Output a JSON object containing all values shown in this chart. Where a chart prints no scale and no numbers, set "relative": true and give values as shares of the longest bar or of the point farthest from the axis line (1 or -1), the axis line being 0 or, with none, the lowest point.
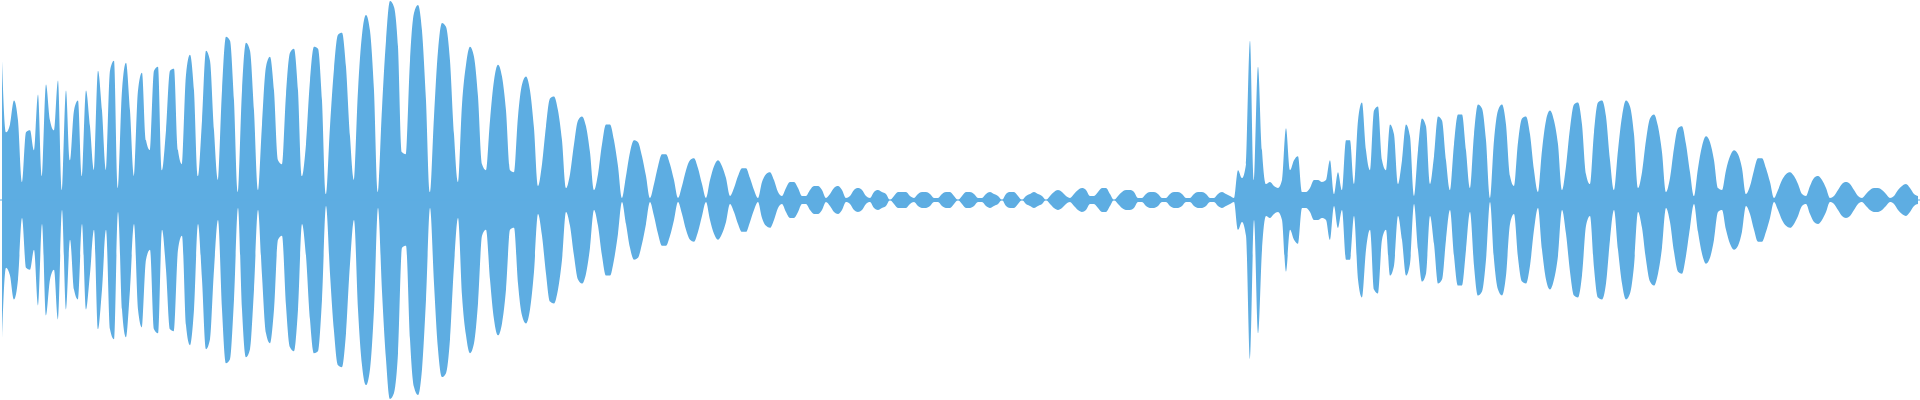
{
  "chart_data": {
    "type": "area",
    "relative": true,
    "ref_lines": [
      {
        "axis": "y",
        "value": 0,
        "color": "#5dade2"
      }
    ],
    "categories": [
      null,
      null,
      null,
      null,
      null,
      null,
      null,
      null,
      null,
      null,
      null,
      null,
      null,
      null,
      null,
      null,
      null,
      null,
      null,
      null,
      null,
      null,
      null,
      null,
      null,
      null,
      null,
      null,
      null,
      null,
      null,
      null,
      null,
      null,
      null,
      null,
      null,
      null,
      null,
      null,
      null,
      null,
      null,
      null,
      null,
      null,
      null,
      null,
      null,
      null,
      null,
      null,
      null,
      null,
      null,
      null,
      null,
      null,
      null,
      null,
      null,
      null,
      null,
      null,
      null,
      null,
      null,
      null,
      null,
      null,
      null,
      null,
      null,
      null,
      null,
      null,
      null,
      null,
      null,
      null,
      null,
      null,
      null,
      null,
      null,
      null,
      null,
      null,
      null,
      null,
      null,
      null,
      null,
      null,
      null,
      null,
      null,
      null,
      null,
      null,
      null,
      null,
      null,
      null,
      null,
      null,
      null,
      null,
      null,
      null,
      null,
      null,
      null,
      null,
      null,
      null,
      null,
      null,
      null,
      null,
      null,
      null,
      null,
      null,
      null,
      null,
      null,
      null,
      null,
      null,
      null,
      null,
      null,
      null,
      null,
      null,
      null,
      null,
      null,
      null,
      null,
      null,
      null,
      null,
      null,
      null,
      null,
      null,
      null,
      null,
      null,
      null,
      null,
      null,
      null,
      null,
      null,
      null,
      null,
      null,
      null,
      null,
      null,
      null,
      null,
      null,
      null,
      null,
      null,
      null,
      null,
      null,
      null,
      null,
      null,
      null,
      null,
      null,
      null,
      null,
      null,
      null,
      null,
      null,
      null,
      null,
      null,
      null,
      null,
      null,
      null,
      null,
      null,
      null,
      null,
      null,
      null,
      null,
      null,
      null,
      null,
      null,
      null,
      null,
      null,
      null,
      null,
      null,
      null,
      null,
      null,
      null,
      null,
      null,
      null,
      null,
      null,
      null,
      null,
      null,
      null,
      null,
      null,
      null,
      null,
      null,
      null,
      null,
      null,
      null,
      null,
      null,
      null,
      null,
      null,
      null,
      null,
      null,
      null,
      null,
      null,
      null,
      null,
      null,
      null,
      null,
      null,
      null,
      null,
      null,
      null,
      null,
      null,
      null,
      null,
      null,
      null,
      null,
      null,
      null,
      null,
      null,
      null,
      null,
      null,
      null,
      null,
      null,
      null,
      null,
      null,
      null,
      null,
      null,
      null,
      null,
      null,
      null,
      null,
      null,
      null,
      null,
      null,
      null,
      null,
      null,
      null,
      null,
      null,
      null,
      null,
      null,
      null,
      null,
      null,
      null,
      null,
      null,
      null,
      null,
      null,
      null,
      null,
      null,
      null,
      null,
      null,
      null,
      null,
      null,
      null,
      null,
      null,
      null,
      null,
      null,
      null,
      null,
      null,
      null,
      null,
      null,
      null,
      null,
      null,
      null,
      null,
      null,
      null,
      null,
      null,
      null,
      null,
      null,
      null,
      null,
      null,
      null,
      null,
      null,
      null,
      null,
      null,
      null,
      null,
      null,
      null,
      null,
      null,
      null,
      null,
      null,
      null,
      null,
      null,
      null,
      null,
      null,
      null,
      null,
      null,
      null,
      null,
      null,
      null,
      null,
      null,
      null,
      null,
      null,
      null,
      null,
      null,
      null,
      null,
      null,
      null,
      null,
      null,
      null,
      null,
      null,
      null,
      null,
      null,
      null,
      null,
      null,
      null,
      null,
      null,
      null,
      null,
      null,
      null,
      null,
      null,
      null,
      null,
      null,
      null,
      null,
      null,
      null,
      null,
      null,
      null,
      null,
      null,
      null,
      null,
      null,
      null,
      null,
      null,
      null,
      null,
      null,
      null,
      null,
      null,
      null,
      null,
      null,
      null,
      null,
      null,
      null,
      null,
      null,
      null,
      null,
      null,
      null,
      null,
      null,
      null,
      null,
      null,
      null,
      null,
      null,
      null,
      null,
      null,
      null,
      null,
      null,
      null,
      null,
      null,
      null,
      null,
      null,
      null,
      null,
      null,
      null,
      null,
      null,
      null,
      null,
      null,
      null,
      null,
      null,
      null,
      null,
      null,
      null,
      null,
      null,
      null,
      null,
      null,
      null,
      null,
      null,
      null,
      null
    ],
    "series": [
      {
        "color": "#5dade2",
        "values": [
          0.7,
          0.34,
          0.38,
          0.5,
          0.4,
          0.09,
          0.34,
          0.35,
          0.25,
          0.53,
          0.12,
          0.58,
          0.4,
          0.35,
          0.6,
          0.05,
          0.55,
          0.2,
          0.45,
          0.5,
          0.12,
          0.55,
          0.37,
          0.15,
          0.65,
          0.45,
          0.15,
          0.65,
          0.7,
          0.06,
          0.55,
          0.69,
          0.45,
          0.12,
          0.55,
          0.64,
          0.3,
          0.25,
          0.65,
          0.67,
          0.15,
          0.35,
          0.65,
          0.66,
          0.25,
          0.18,
          0.63,
          0.73,
          0.55,
          0.12,
          0.4,
          0.75,
          0.7,
          0.35,
          0.1,
          0.55,
          0.82,
          0.8,
          0.5,
          0.04,
          0.55,
          0.79,
          0.75,
          0.45,
          0.05,
          0.38,
          0.67,
          0.72,
          0.55,
          0.2,
          0.18,
          0.53,
          0.74,
          0.76,
          0.55,
          0.12,
          0.28,
          0.6,
          0.77,
          0.76,
          0.5,
          0.03,
          0.37,
          0.66,
          0.83,
          0.84,
          0.67,
          0.32,
          0.1,
          0.55,
          0.83,
          0.93,
          0.85,
          0.55,
          0.04,
          0.46,
          0.8,
          1,
          0.97,
          0.77,
          0.24,
          0.23,
          0.7,
          0.94,
          0.98,
          0.85,
          0.5,
          0.04,
          0.42,
          0.75,
          0.89,
          0.87,
          0.7,
          0.33,
          0.09,
          0.48,
          0.68,
          0.77,
          0.72,
          0.52,
          0.18,
          0.15,
          0.4,
          0.6,
          0.68,
          0.62,
          0.45,
          0.15,
          0.14,
          0.42,
          0.58,
          0.62,
          0.55,
          0.36,
          0.07,
          0.18,
          0.37,
          0.51,
          0.52,
          0.45,
          0.3,
          0.06,
          0.13,
          0.28,
          0.4,
          0.42,
          0.37,
          0.24,
          0.05,
          0.13,
          0.28,
          0.38,
          0.38,
          0.3,
          0.17,
          0.01,
          0.12,
          0.24,
          0.3,
          0.29,
          0.22,
          0.12,
          0.01,
          0.08,
          0.17,
          0.23,
          0.23,
          0.18,
          0.1,
          0.01,
          0.07,
          0.15,
          0.2,
          0.21,
          0.16,
          0.08,
          0.01,
          0.1,
          0.17,
          0.2,
          0.17,
          0.11,
          0.02,
          0.06,
          0.12,
          0.16,
          0.16,
          0.11,
          0.05,
          0.01,
          0.09,
          0.13,
          0.14,
          0.1,
          0.04,
          0.02,
          0.06,
          0.09,
          0.09,
          0.06,
          0.02,
          0.02,
          0.05,
          0.07,
          0.07,
          0.05,
          0.01,
          0.03,
          0.06,
          0.07,
          0.05,
          0.01,
          0.02,
          0.05,
          0.06,
          0.05,
          0.02,
          0.01,
          0.04,
          0.05,
          0.04,
          0.03,
          0,
          0.02,
          0.04,
          0.04,
          0.04,
          0.02,
          0.01,
          0.03,
          0.04,
          0.04,
          0.03,
          0.01,
          0.01,
          0.03,
          0.04,
          0.04,
          0.02,
          0,
          0.02,
          0.04,
          0.04,
          0.03,
          0.01,
          0.01,
          0.03,
          0.04,
          0.03,
          0.02,
          0,
          0.03,
          0.04,
          0.04,
          0.02,
          0,
          0.02,
          0.03,
          0.04,
          0.03,
          0.02,
          0,
          0.02,
          0.04,
          0.05,
          0.04,
          0.02,
          0.01,
          0.03,
          0.05,
          0.06,
          0.05,
          0.02,
          0.02,
          0.04,
          0.06,
          0.06,
          0.03,
          0,
          0.02,
          0.04,
          0.05,
          0.05,
          0.04,
          0.01,
          0.01,
          0.03,
          0.04,
          0.04,
          0.03,
          0.01,
          0.01,
          0.03,
          0.04,
          0.04,
          0.03,
          0.01,
          0.01,
          0.03,
          0.04,
          0.04,
          0.03,
          0.01,
          0.01,
          0.03,
          0.04,
          0.03,
          0.02,
          0.01,
          0.15,
          0.11,
          0.18,
          0.8,
          0.1,
          0.67,
          0.25,
          0.08,
          0.09,
          0.07,
          0.06,
          0.1,
          0.36,
          0.15,
          0.2,
          0.22,
          0.04,
          0.04,
          0.06,
          0.1,
          0.1,
          0.09,
          0.1,
          0.2,
          0.03,
          0.14,
          0.05,
          0.3,
          0.3,
          0.08,
          0.4,
          0.49,
          0.25,
          0.15,
          0.45,
          0.47,
          0.2,
          0.15,
          0.38,
          0.33,
          0.08,
          0.2,
          0.38,
          0.32,
          0.02,
          0.25,
          0.41,
          0.37,
          0.08,
          0.22,
          0.42,
          0.4,
          0.2,
          0.05,
          0.28,
          0.43,
          0.43,
          0.25,
          0.06,
          0.33,
          0.48,
          0.46,
          0.3,
          0.01,
          0.3,
          0.45,
          0.48,
          0.38,
          0.12,
          0.07,
          0.29,
          0.41,
          0.42,
          0.33,
          0.15,
          0.04,
          0.25,
          0.4,
          0.45,
          0.4,
          0.28,
          0.05,
          0.17,
          0.36,
          0.48,
          0.49,
          0.38,
          0.13,
          0.08,
          0.34,
          0.49,
          0.5,
          0.42,
          0.2,
          0.05,
          0.25,
          0.42,
          0.5,
          0.47,
          0.33,
          0.06,
          0.14,
          0.3,
          0.41,
          0.43,
          0.37,
          0.24,
          0.04,
          0.11,
          0.26,
          0.36,
          0.37,
          0.28,
          0.14,
          0.02,
          0.16,
          0.27,
          0.32,
          0.29,
          0.2,
          0.06,
          0.05,
          0.15,
          0.22,
          0.25,
          0.23,
          0.16,
          0.03,
          0.07,
          0.15,
          0.21,
          0.21,
          0.16,
          0.09,
          0.01,
          0.05,
          0.1,
          0.13,
          0.14,
          0.12,
          0.08,
          0.03,
          0.02,
          0.07,
          0.11,
          0.12,
          0.1,
          0.06,
          0.01,
          0.02,
          0.05,
          0.08,
          0.09,
          0.08,
          0.05,
          0.02,
          0.01,
          0.03,
          0.05,
          0.06,
          0.06,
          0.05,
          0.03,
          0.01,
          0.02,
          0.05,
          0.07,
          0.08,
          0.06,
          0.03,
          0.02
        ]
      },
      {
        "color": "#5eade2",
        "values": [
          -0.7,
          -0.34,
          -0.38,
          -0.5,
          -0.4,
          -0.09,
          -0.34,
          -0.35,
          -0.25,
          -0.53,
          -0.12,
          -0.58,
          -0.4,
          -0.35,
          -0.6,
          -0.05,
          -0.55,
          -0.2,
          -0.45,
          -0.5,
          -0.12,
          -0.55,
          -0.37,
          -0.15,
          -0.65,
          -0.45,
          -0.15,
          -0.65,
          -0.7,
          -0.06,
          -0.55,
          -0.69,
          -0.45,
          -0.12,
          -0.55,
          -0.64,
          -0.3,
          -0.25,
          -0.65,
          -0.67,
          -0.15,
          -0.35,
          -0.65,
          -0.66,
          -0.25,
          -0.18,
          -0.63,
          -0.73,
          -0.55,
          -0.12,
          -0.4,
          -0.75,
          -0.7,
          -0.35,
          -0.1,
          -0.55,
          -0.82,
          -0.8,
          -0.5,
          -0.04,
          -0.55,
          -0.79,
          -0.75,
          -0.45,
          -0.05,
          -0.38,
          -0.67,
          -0.72,
          -0.55,
          -0.2,
          -0.18,
          -0.53,
          -0.74,
          -0.76,
          -0.55,
          -0.12,
          -0.28,
          -0.6,
          -0.77,
          -0.76,
          -0.5,
          -0.03,
          -0.37,
          -0.66,
          -0.83,
          -0.84,
          -0.67,
          -0.32,
          -0.1,
          -0.55,
          -0.83,
          -0.93,
          -0.85,
          -0.55,
          -0.04,
          -0.46,
          -0.8,
          -1,
          -0.97,
          -0.77,
          -0.24,
          -0.23,
          -0.7,
          -0.94,
          -0.98,
          -0.85,
          -0.5,
          -0.04,
          -0.42,
          -0.75,
          -0.89,
          -0.87,
          -0.7,
          -0.33,
          -0.09,
          -0.48,
          -0.68,
          -0.77,
          -0.72,
          -0.52,
          -0.18,
          -0.15,
          -0.4,
          -0.6,
          -0.68,
          -0.62,
          -0.45,
          -0.15,
          -0.14,
          -0.42,
          -0.58,
          -0.62,
          -0.55,
          -0.36,
          -0.07,
          -0.18,
          -0.37,
          -0.51,
          -0.52,
          -0.45,
          -0.3,
          -0.06,
          -0.13,
          -0.28,
          -0.4,
          -0.42,
          -0.37,
          -0.24,
          -0.05,
          -0.13,
          -0.28,
          -0.38,
          -0.38,
          -0.3,
          -0.17,
          -0.01,
          -0.12,
          -0.24,
          -0.3,
          -0.29,
          -0.22,
          -0.12,
          -0.01,
          -0.08,
          -0.17,
          -0.23,
          -0.23,
          -0.18,
          -0.1,
          -0.01,
          -0.07,
          -0.15,
          -0.2,
          -0.21,
          -0.16,
          -0.08,
          -0.01,
          -0.1,
          -0.17,
          -0.2,
          -0.17,
          -0.11,
          -0.02,
          -0.06,
          -0.12,
          -0.16,
          -0.16,
          -0.11,
          -0.05,
          -0.01,
          -0.09,
          -0.13,
          -0.14,
          -0.1,
          -0.04,
          -0.02,
          -0.06,
          -0.09,
          -0.09,
          -0.06,
          -0.02,
          -0.02,
          -0.05,
          -0.07,
          -0.07,
          -0.05,
          -0.01,
          -0.03,
          -0.06,
          -0.07,
          -0.05,
          -0.01,
          -0.02,
          -0.05,
          -0.06,
          -0.05,
          -0.02,
          -0.01,
          -0.04,
          -0.05,
          -0.04,
          -0.03,
          0,
          -0.02,
          -0.04,
          -0.04,
          -0.04,
          -0.02,
          -0.01,
          -0.03,
          -0.04,
          -0.04,
          -0.03,
          -0.01,
          -0.01,
          -0.03,
          -0.04,
          -0.04,
          -0.02,
          0,
          -0.02,
          -0.04,
          -0.04,
          -0.03,
          -0.01,
          -0.01,
          -0.03,
          -0.04,
          -0.03,
          -0.02,
          0,
          -0.03,
          -0.04,
          -0.04,
          -0.02,
          0,
          -0.02,
          -0.03,
          -0.04,
          -0.03,
          -0.02,
          0,
          -0.02,
          -0.04,
          -0.05,
          -0.04,
          -0.02,
          -0.01,
          -0.03,
          -0.05,
          -0.06,
          -0.05,
          -0.02,
          -0.02,
          -0.04,
          -0.06,
          -0.06,
          -0.03,
          0,
          -0.02,
          -0.04,
          -0.05,
          -0.05,
          -0.04,
          -0.01,
          -0.01,
          -0.03,
          -0.04,
          -0.04,
          -0.03,
          -0.01,
          -0.01,
          -0.03,
          -0.04,
          -0.04,
          -0.03,
          -0.01,
          -0.01,
          -0.03,
          -0.04,
          -0.04,
          -0.03,
          -0.01,
          -0.01,
          -0.03,
          -0.04,
          -0.03,
          -0.02,
          -0.01,
          -0.15,
          -0.11,
          -0.18,
          -0.8,
          -0.1,
          -0.67,
          -0.25,
          -0.08,
          -0.09,
          -0.07,
          -0.06,
          -0.1,
          -0.36,
          -0.15,
          -0.2,
          -0.22,
          -0.04,
          -0.04,
          -0.06,
          -0.1,
          -0.1,
          -0.09,
          -0.1,
          -0.2,
          -0.03,
          -0.14,
          -0.05,
          -0.3,
          -0.3,
          -0.08,
          -0.4,
          -0.49,
          -0.25,
          -0.15,
          -0.45,
          -0.47,
          -0.2,
          -0.15,
          -0.38,
          -0.33,
          -0.08,
          -0.2,
          -0.38,
          -0.32,
          -0.02,
          -0.25,
          -0.41,
          -0.37,
          -0.08,
          -0.22,
          -0.42,
          -0.4,
          -0.2,
          -0.05,
          -0.28,
          -0.43,
          -0.43,
          -0.25,
          -0.06,
          -0.33,
          -0.48,
          -0.46,
          -0.3,
          -0.01,
          -0.3,
          -0.45,
          -0.48,
          -0.38,
          -0.12,
          -0.07,
          -0.29,
          -0.41,
          -0.42,
          -0.33,
          -0.15,
          -0.04,
          -0.25,
          -0.4,
          -0.45,
          -0.4,
          -0.28,
          -0.05,
          -0.17,
          -0.36,
          -0.48,
          -0.49,
          -0.38,
          -0.13,
          -0.08,
          -0.34,
          -0.49,
          -0.5,
          -0.42,
          -0.2,
          -0.05,
          -0.25,
          -0.42,
          -0.5,
          -0.47,
          -0.33,
          -0.06,
          -0.14,
          -0.3,
          -0.41,
          -0.43,
          -0.37,
          -0.24,
          -0.04,
          -0.11,
          -0.26,
          -0.36,
          -0.37,
          -0.28,
          -0.14,
          -0.02,
          -0.16,
          -0.27,
          -0.32,
          -0.29,
          -0.2,
          -0.06,
          -0.05,
          -0.15,
          -0.22,
          -0.25,
          -0.23,
          -0.16,
          -0.03,
          -0.07,
          -0.15,
          -0.21,
          -0.21,
          -0.16,
          -0.09,
          -0.01,
          -0.05,
          -0.1,
          -0.13,
          -0.14,
          -0.12,
          -0.08,
          -0.03,
          -0.02,
          -0.07,
          -0.11,
          -0.12,
          -0.1,
          -0.06,
          -0.01,
          -0.02,
          -0.05,
          -0.08,
          -0.09,
          -0.08,
          -0.05,
          -0.02,
          -0.01,
          -0.03,
          -0.05,
          -0.06,
          -0.06,
          -0.05,
          -0.03,
          -0.01,
          -0.02,
          -0.05,
          -0.07,
          -0.08,
          -0.06,
          -0.03,
          -0.02
        ]
      }
    ]
  }
}
